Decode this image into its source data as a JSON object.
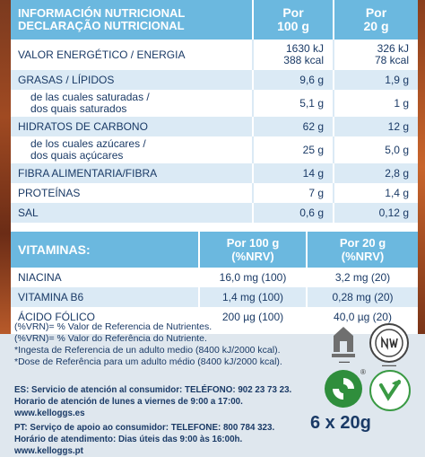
{
  "nutrition": {
    "title_es": "INFORMACIÓN NUTRICIONAL",
    "title_pt": "DECLARAÇÃO NUTRICIONAL",
    "col_100": [
      "Por",
      "100 g"
    ],
    "col_20": [
      "Por",
      "20 g"
    ],
    "rows": [
      {
        "name": [
          "VALOR ENERGÉTICO / ENERGIA"
        ],
        "v100": [
          "1630 kJ",
          "388 kcal"
        ],
        "v20": [
          "326 kJ",
          "78 kcal"
        ]
      },
      {
        "name": [
          "GRASAS / LÍPIDOS"
        ],
        "v100": [
          "9,6 g"
        ],
        "v20": [
          "1,9 g"
        ]
      },
      {
        "name": [
          "de las cuales saturadas /",
          "dos quais saturados"
        ],
        "v100": [
          "5,1 g"
        ],
        "v20": [
          "1 g"
        ]
      },
      {
        "name": [
          "HIDRATOS DE CARBONO"
        ],
        "v100": [
          "62 g"
        ],
        "v20": [
          "12 g"
        ]
      },
      {
        "name": [
          "de los cuales azúcares /",
          "dos quais açúcares"
        ],
        "v100": [
          "25 g"
        ],
        "v20": [
          "5,0 g"
        ]
      },
      {
        "name": [
          "FIBRA ALIMENTARIA/FIBRA"
        ],
        "v100": [
          "14 g"
        ],
        "v20": [
          "2,8 g"
        ]
      },
      {
        "name": [
          "PROTEÍNAS"
        ],
        "v100": [
          "7 g"
        ],
        "v20": [
          "1,4 g"
        ]
      },
      {
        "name": [
          "SAL"
        ],
        "v100": [
          "0,6 g"
        ],
        "v20": [
          "0,12 g"
        ]
      }
    ]
  },
  "vitamins": {
    "title": "VITAMINAS:",
    "col_100": [
      "Por 100 g",
      "(%NRV)"
    ],
    "col_20": [
      "Por 20 g",
      "(%NRV)"
    ],
    "rows": [
      {
        "name": "NIACINA",
        "v100": "16,0 mg (100)",
        "v20": "3,2 mg (20)"
      },
      {
        "name": "VITAMINA B6",
        "v100": "1,4 mg (100)",
        "v20": "0,28 mg (20)"
      },
      {
        "name": "ÁCIDO FÓLICO",
        "v100": "200 µg (100)",
        "v20": "40,0 µg (20)"
      }
    ]
  },
  "notes": [
    "(%VRN)= % Valor de Referencia de Nutrientes.",
    "(%VRN)= % Valor do Referência do Nutriente.",
    "*Ingesta de Referencia de un adulto medio (8400 kJ/2000 kcal).",
    "*Dose de Referência para um adulto médio (8400 kJ/2000 kcal)."
  ],
  "service": {
    "es": "ES: Servicio de atención al consumidor: TELÉFONO: 902 23 73 23. Horario de atención de lunes a viernes de 9:00 a 17:00. www.kelloggs.es",
    "pt": "PT: Serviço de apoio ao consumidor: TELEFONE: 800 784 323. Horário de atendimento: Dias úteis das 9:00 às 16:00h. www.kelloggs.pt"
  },
  "pack_size": "6 x 20g",
  "logos": [
    "halal-logo-icon",
    "nwk-logo-icon",
    "green-dot-recycling-icon",
    "vegetarian-logo-icon"
  ],
  "colors": {
    "header_blue": "#6bb8df",
    "row_shade": "#dbeaf5",
    "text_navy": "#1a3a66"
  }
}
